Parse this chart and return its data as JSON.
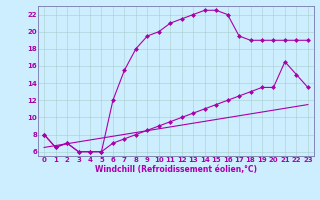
{
  "xlabel": "Windchill (Refroidissement éolien,°C)",
  "bg_color": "#cceeff",
  "grid_color": "#aacccc",
  "line_color": "#aa00aa",
  "spine_color": "#7777aa",
  "xlim": [
    -0.5,
    23.5
  ],
  "ylim": [
    5.5,
    23.0
  ],
  "xticks": [
    0,
    1,
    2,
    3,
    4,
    5,
    6,
    7,
    8,
    9,
    10,
    11,
    12,
    13,
    14,
    15,
    16,
    17,
    18,
    19,
    20,
    21,
    22,
    23
  ],
  "yticks": [
    6,
    8,
    10,
    12,
    14,
    16,
    18,
    20,
    22
  ],
  "series1_x": [
    0,
    1,
    2,
    3,
    4,
    5,
    6,
    7,
    8,
    9,
    10,
    11,
    12,
    13,
    14,
    15,
    16,
    17,
    18,
    19,
    20,
    21,
    22,
    23
  ],
  "series1_y": [
    8.0,
    6.5,
    7.0,
    6.0,
    6.0,
    6.0,
    12.0,
    15.5,
    18.0,
    19.5,
    20.0,
    21.0,
    21.5,
    22.0,
    22.5,
    22.5,
    22.0,
    19.5,
    19.0,
    19.0,
    19.0,
    19.0,
    19.0,
    19.0
  ],
  "series2_x": [
    0,
    1,
    2,
    3,
    4,
    5,
    6,
    7,
    8,
    9,
    10,
    11,
    12,
    13,
    14,
    15,
    16,
    17,
    18,
    19,
    20,
    21,
    22,
    23
  ],
  "series2_y": [
    8.0,
    6.5,
    7.0,
    6.0,
    6.0,
    6.0,
    7.0,
    7.5,
    8.0,
    8.5,
    9.0,
    9.5,
    10.0,
    10.5,
    11.0,
    11.5,
    12.0,
    12.5,
    13.0,
    13.5,
    13.5,
    16.5,
    15.0,
    13.5
  ],
  "series3_x": [
    0,
    23
  ],
  "series3_y": [
    6.5,
    11.5
  ],
  "markersize": 2.5,
  "linewidth": 0.8,
  "xlabel_fontsize": 5.5,
  "tick_fontsize": 5.0
}
